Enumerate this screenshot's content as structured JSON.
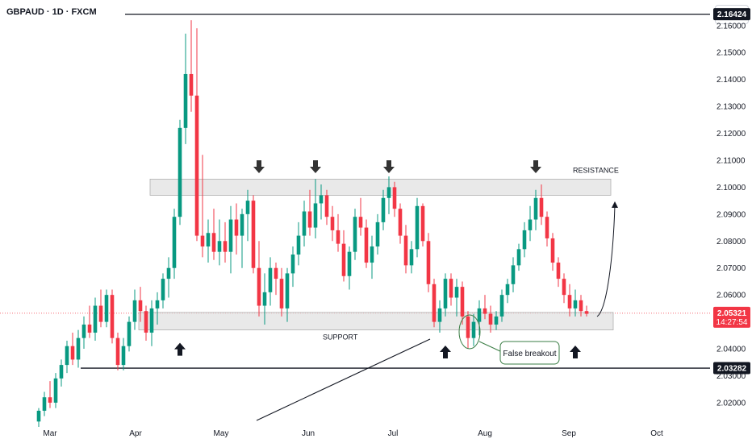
{
  "chart_title": "GBPAUD · 1D · FXCM",
  "currency": "AUD",
  "chart_data": {
    "type": "candlestick",
    "title": "GBPAUD · 1D · FXCM",
    "y_axis_labels": [
      "2.16000",
      "2.15000",
      "2.14000",
      "2.13000",
      "2.12000",
      "2.11000",
      "2.10000",
      "2.09000",
      "2.08000",
      "2.07000",
      "2.06000",
      "2.05000",
      "2.04000",
      "2.03000",
      "2.02000"
    ],
    "y_axis_values": [
      2.16,
      2.15,
      2.14,
      2.13,
      2.12,
      2.11,
      2.1,
      2.09,
      2.08,
      2.07,
      2.06,
      2.05,
      2.04,
      2.03,
      2.02
    ],
    "x_axis_labels": [
      "Mar",
      "Apr",
      "May",
      "Jun",
      "Jul",
      "Aug",
      "Sep",
      "Oct"
    ],
    "ylim": [
      2.0125,
      2.1695
    ],
    "price_markers": [
      {
        "label": "2.16424",
        "color": "#131722",
        "value": 2.16424
      },
      {
        "label": "2.05321",
        "sub": "14:27:54",
        "color": "#f23645",
        "value": 2.05321
      },
      {
        "label": "2.03282",
        "color": "#131722",
        "value": 2.03282
      }
    ],
    "horizontal_levels": [
      2.16424,
      2.03282
    ],
    "current_price": 2.05321,
    "zones": [
      {
        "name": "RESISTANCE",
        "low": 2.097,
        "high": 2.103
      },
      {
        "name": "SUPPORT",
        "low": 2.047,
        "high": 2.0535
      }
    ],
    "annotations": {
      "resistance": "RESISTANCE",
      "support": "SUPPORT",
      "false_breakout": "False breakout"
    },
    "colors": {
      "up": "#089981",
      "down": "#f23645",
      "zone": "#e0e0e0",
      "zone_border": "#b0b0b0"
    },
    "candles": [
      [
        2.013,
        2.018,
        2.011,
        2.017
      ],
      [
        2.017,
        2.024,
        2.015,
        2.022
      ],
      [
        2.022,
        2.028,
        2.018,
        2.02
      ],
      [
        2.02,
        2.031,
        2.018,
        2.029
      ],
      [
        2.029,
        2.036,
        2.026,
        2.034
      ],
      [
        2.034,
        2.043,
        2.031,
        2.041
      ],
      [
        2.041,
        2.046,
        2.034,
        2.036
      ],
      [
        2.036,
        2.047,
        2.033,
        2.044
      ],
      [
        2.044,
        2.052,
        2.04,
        2.049
      ],
      [
        2.049,
        2.056,
        2.044,
        2.046
      ],
      [
        2.046,
        2.059,
        2.043,
        2.056
      ],
      [
        2.056,
        2.062,
        2.048,
        2.05
      ],
      [
        2.05,
        2.062,
        2.048,
        2.06
      ],
      [
        2.06,
        2.062,
        2.042,
        2.044
      ],
      [
        2.044,
        2.046,
        2.032,
        2.034
      ],
      [
        2.034,
        2.044,
        2.032,
        2.041
      ],
      [
        2.041,
        2.052,
        2.039,
        2.05
      ],
      [
        2.05,
        2.062,
        2.047,
        2.058
      ],
      [
        2.058,
        2.063,
        2.05,
        2.054
      ],
      [
        2.054,
        2.056,
        2.043,
        2.046
      ],
      [
        2.046,
        2.058,
        2.041,
        2.055
      ],
      [
        2.055,
        2.061,
        2.049,
        2.058
      ],
      [
        2.058,
        2.068,
        2.055,
        2.066
      ],
      [
        2.066,
        2.074,
        2.059,
        2.07
      ],
      [
        2.07,
        2.092,
        2.066,
        2.089
      ],
      [
        2.089,
        2.125,
        2.086,
        2.122
      ],
      [
        2.122,
        2.157,
        2.116,
        2.142
      ],
      [
        2.142,
        2.162,
        2.128,
        2.134
      ],
      [
        2.134,
        2.159,
        2.08,
        2.082
      ],
      [
        2.082,
        2.112,
        2.074,
        2.078
      ],
      [
        2.078,
        2.088,
        2.072,
        2.083
      ],
      [
        2.083,
        2.092,
        2.073,
        2.076
      ],
      [
        2.076,
        2.088,
        2.071,
        2.08
      ],
      [
        2.08,
        2.087,
        2.072,
        2.076
      ],
      [
        2.076,
        2.093,
        2.068,
        2.088
      ],
      [
        2.088,
        2.094,
        2.075,
        2.082
      ],
      [
        2.082,
        2.092,
        2.07,
        2.09
      ],
      [
        2.09,
        2.099,
        2.08,
        2.095
      ],
      [
        2.095,
        2.097,
        2.068,
        2.07
      ],
      [
        2.07,
        2.08,
        2.052,
        2.056
      ],
      [
        2.056,
        2.068,
        2.049,
        2.061
      ],
      [
        2.061,
        2.074,
        2.056,
        2.07
      ],
      [
        2.07,
        2.072,
        2.06,
        2.066
      ],
      [
        2.066,
        2.07,
        2.052,
        2.055
      ],
      [
        2.055,
        2.07,
        2.05,
        2.068
      ],
      [
        2.068,
        2.078,
        2.063,
        2.075
      ],
      [
        2.075,
        2.087,
        2.071,
        2.082
      ],
      [
        2.082,
        2.095,
        2.078,
        2.091
      ],
      [
        2.091,
        2.099,
        2.082,
        2.085
      ],
      [
        2.085,
        2.103,
        2.081,
        2.094
      ],
      [
        2.094,
        2.101,
        2.088,
        2.097
      ],
      [
        2.097,
        2.099,
        2.086,
        2.089
      ],
      [
        2.089,
        2.093,
        2.08,
        2.084
      ],
      [
        2.084,
        2.09,
        2.076,
        2.079
      ],
      [
        2.079,
        2.084,
        2.065,
        2.067
      ],
      [
        2.067,
        2.078,
        2.062,
        2.076
      ],
      [
        2.076,
        2.092,
        2.073,
        2.089
      ],
      [
        2.089,
        2.096,
        2.082,
        2.085
      ],
      [
        2.085,
        2.088,
        2.07,
        2.072
      ],
      [
        2.072,
        2.082,
        2.066,
        2.078
      ],
      [
        2.078,
        2.09,
        2.075,
        2.087
      ],
      [
        2.087,
        2.099,
        2.084,
        2.096
      ],
      [
        2.096,
        2.104,
        2.09,
        2.1
      ],
      [
        2.1,
        2.102,
        2.089,
        2.092
      ],
      [
        2.092,
        2.094,
        2.079,
        2.082
      ],
      [
        2.082,
        2.086,
        2.068,
        2.071
      ],
      [
        2.071,
        2.08,
        2.068,
        2.077
      ],
      [
        2.077,
        2.096,
        2.074,
        2.093
      ],
      [
        2.093,
        2.094,
        2.078,
        2.08
      ],
      [
        2.08,
        2.083,
        2.061,
        2.064
      ],
      [
        2.064,
        2.066,
        2.048,
        2.05
      ],
      [
        2.05,
        2.058,
        2.046,
        2.055
      ],
      [
        2.055,
        2.068,
        2.052,
        2.066
      ],
      [
        2.066,
        2.068,
        2.056,
        2.059
      ],
      [
        2.059,
        2.066,
        2.052,
        2.063
      ],
      [
        2.063,
        2.065,
        2.049,
        2.052
      ],
      [
        2.052,
        2.054,
        2.04,
        2.044
      ],
      [
        2.044,
        2.053,
        2.041,
        2.05
      ],
      [
        2.05,
        2.058,
        2.045,
        2.055
      ],
      [
        2.055,
        2.06,
        2.051,
        2.053
      ],
      [
        2.053,
        2.056,
        2.046,
        2.049
      ],
      [
        2.049,
        2.054,
        2.047,
        2.052
      ],
      [
        2.052,
        2.062,
        2.05,
        2.06
      ],
      [
        2.06,
        2.066,
        2.057,
        2.064
      ],
      [
        2.064,
        2.074,
        2.061,
        2.071
      ],
      [
        2.071,
        2.079,
        2.069,
        2.077
      ],
      [
        2.077,
        2.087,
        2.074,
        2.084
      ],
      [
        2.084,
        2.093,
        2.08,
        2.088
      ],
      [
        2.088,
        2.099,
        2.084,
        2.096
      ],
      [
        2.096,
        2.101,
        2.086,
        2.089
      ],
      [
        2.089,
        2.091,
        2.078,
        2.081
      ],
      [
        2.081,
        2.083,
        2.069,
        2.072
      ],
      [
        2.072,
        2.074,
        2.063,
        2.066
      ],
      [
        2.066,
        2.068,
        2.057,
        2.06
      ],
      [
        2.06,
        2.064,
        2.052,
        2.055
      ],
      [
        2.055,
        2.062,
        2.052,
        2.058
      ],
      [
        2.058,
        2.06,
        2.052,
        2.054
      ],
      [
        2.054,
        2.056,
        2.052,
        2.053
      ]
    ],
    "arrows": [
      {
        "dir": "down",
        "candle": 39,
        "value": 2.104
      },
      {
        "dir": "down",
        "candle": 49,
        "value": 2.104
      },
      {
        "dir": "down",
        "candle": 62,
        "value": 2.104
      },
      {
        "dir": "down",
        "candle": 88,
        "value": 2.104
      },
      {
        "dir": "up",
        "candle": 25,
        "value": 2.044
      },
      {
        "dir": "up",
        "candle": 72,
        "value": 2.043
      },
      {
        "dir": "up",
        "candle": 95,
        "value": 2.043
      }
    ]
  }
}
